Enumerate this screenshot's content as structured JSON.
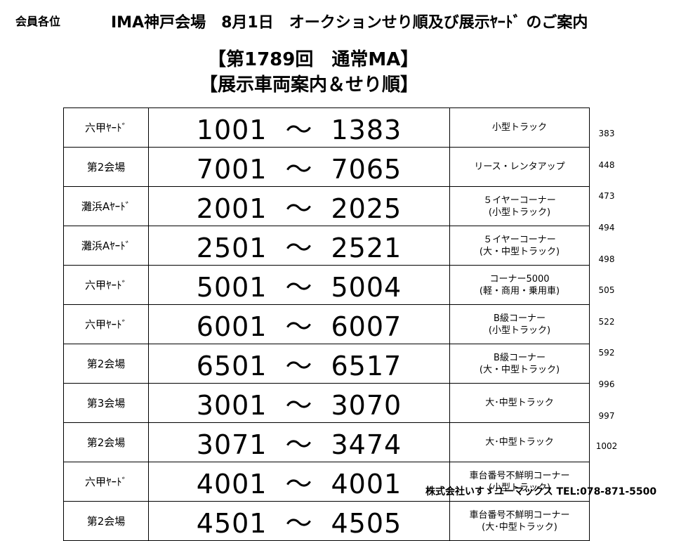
{
  "greeting": "会員各位",
  "header_title": "IMA神戸会場　8月1日　オークションせり順及び展示ﾔｰﾄﾞ のご案内",
  "headline": {
    "line1": "【第1789回　通常MA】",
    "line2": "【展示車両案内＆せり順】"
  },
  "range_separator": "～",
  "rows": [
    {
      "venue": "六甲ﾔｰﾄﾞ",
      "start": "1001",
      "end": "1383",
      "category": [
        "小型トラック"
      ],
      "cumulative": "383"
    },
    {
      "venue": "第2会場",
      "start": "7001",
      "end": "7065",
      "category": [
        "リース・レンタアップ"
      ],
      "cumulative": "448"
    },
    {
      "venue": "灘浜Aﾔｰﾄﾞ",
      "start": "2001",
      "end": "2025",
      "category": [
        "５イヤーコーナー",
        "(小型トラック)"
      ],
      "cumulative": "473"
    },
    {
      "venue": "灘浜Aﾔｰﾄﾞ",
      "start": "2501",
      "end": "2521",
      "category": [
        "５イヤーコーナー",
        "(大・中型トラック)"
      ],
      "cumulative": "494"
    },
    {
      "venue": "六甲ﾔｰﾄﾞ",
      "start": "5001",
      "end": "5004",
      "category": [
        "コーナー5000",
        "(軽・商用・乗用車)"
      ],
      "cumulative": "498"
    },
    {
      "venue": "六甲ﾔｰﾄﾞ",
      "start": "6001",
      "end": "6007",
      "category": [
        "B級コーナー",
        "(小型トラック)"
      ],
      "cumulative": "505"
    },
    {
      "venue": "第2会場",
      "start": "6501",
      "end": "6517",
      "category": [
        "B級コーナー",
        "(大・中型トラック)"
      ],
      "cumulative": "522"
    },
    {
      "venue": "第3会場",
      "start": "3001",
      "end": "3070",
      "category": [
        "大･中型トラック"
      ],
      "cumulative": "592"
    },
    {
      "venue": "第2会場",
      "start": "3071",
      "end": "3474",
      "category": [
        "大･中型トラック"
      ],
      "cumulative": "996"
    },
    {
      "venue": "六甲ﾔｰﾄﾞ",
      "start": "4001",
      "end": "4001",
      "category": [
        "車台番号不鮮明コーナー",
        "(小型トラック)"
      ],
      "cumulative": "997"
    },
    {
      "venue": "第2会場",
      "start": "4501",
      "end": "4505",
      "category": [
        "車台番号不鮮明コーナー",
        "(大･中型トラック)"
      ],
      "cumulative": "1002"
    }
  ],
  "footer": "株式会社いすゞユーマックス  TEL:078-871-5500"
}
